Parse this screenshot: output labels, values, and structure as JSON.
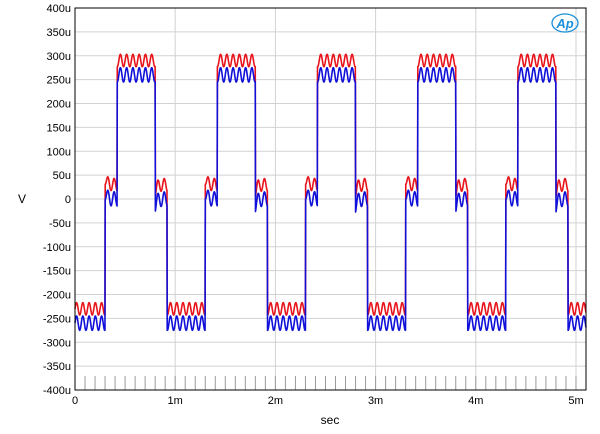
{
  "chart_data": {
    "type": "line",
    "title": "",
    "xlabel": "sec",
    "ylabel": "V",
    "xlim": [
      0,
      0.0051
    ],
    "ylim": [
      -0.0004,
      0.0004
    ],
    "grid": true,
    "legend": "none",
    "x_ticks": [
      {
        "value": 0,
        "label": "0"
      },
      {
        "value": 0.001,
        "label": "1m"
      },
      {
        "value": 0.002,
        "label": "2m"
      },
      {
        "value": 0.003,
        "label": "3m"
      },
      {
        "value": 0.004,
        "label": "4m"
      },
      {
        "value": 0.005,
        "label": "5m"
      }
    ],
    "y_ticks": [
      {
        "value": 0.0004,
        "label": "400u"
      },
      {
        "value": 0.00035,
        "label": "350u"
      },
      {
        "value": 0.0003,
        "label": "300u"
      },
      {
        "value": 0.00025,
        "label": "250u"
      },
      {
        "value": 0.0002,
        "label": "200u"
      },
      {
        "value": 0.00015,
        "label": "150u"
      },
      {
        "value": 0.0001,
        "label": "100u"
      },
      {
        "value": 5e-05,
        "label": "50u"
      },
      {
        "value": 0,
        "label": "0"
      },
      {
        "value": -5e-05,
        "label": "-50u"
      },
      {
        "value": -0.0001,
        "label": "-100u"
      },
      {
        "value": -0.00015,
        "label": "-150u"
      },
      {
        "value": -0.0002,
        "label": "-200u"
      },
      {
        "value": -0.00025,
        "label": "-250u"
      },
      {
        "value": -0.0003,
        "label": "-300u"
      },
      {
        "value": -0.00035,
        "label": "-350u"
      },
      {
        "value": -0.0004,
        "label": "-400u"
      }
    ],
    "series": [
      {
        "color": "#e8141c",
        "period": 0.001,
        "phase": 0.0003,
        "high": 0.00029,
        "step": 3e-05,
        "low": -0.00023,
        "ripple_frequency": 16000,
        "ripple_amplitude": 1.3e-05,
        "edge_overshoot": 4.5e-05
      },
      {
        "color": "#1010d8",
        "period": 0.001,
        "phase": 0.0003,
        "high": 0.00026,
        "step": 0.0,
        "low": -0.00026,
        "ripple_frequency": 16000,
        "ripple_amplitude": 1.5e-05,
        "edge_overshoot": 4.5e-05
      }
    ],
    "logo": {
      "text": "Ap",
      "color": "#1a8fd8"
    }
  }
}
